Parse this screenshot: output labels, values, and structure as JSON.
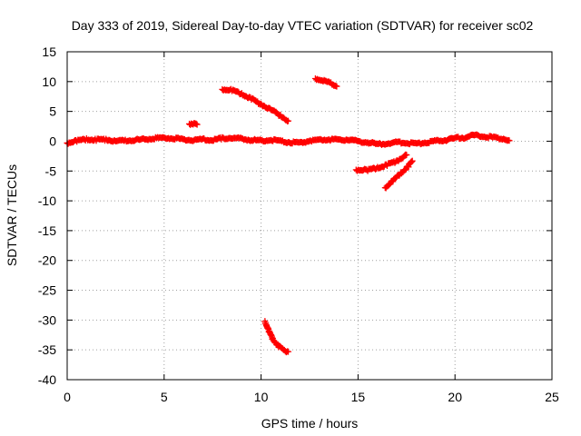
{
  "chart_data": {
    "type": "scatter",
    "title": "Day 333 of 2019, Sidereal Day-to-day VTEC variation (SDTVAR) for receiver sc02",
    "xlabel": "GPS time / hours",
    "ylabel": "SDTVAR / TECUs",
    "xlim": [
      0,
      25
    ],
    "ylim": [
      -40,
      15
    ],
    "x_ticks": [
      0,
      5,
      10,
      15,
      20,
      25
    ],
    "y_ticks": [
      -40,
      -35,
      -30,
      -25,
      -20,
      -15,
      -10,
      -5,
      0,
      5,
      10,
      15
    ],
    "x_tick_labels": [
      "0",
      "5",
      "10",
      "15",
      "20",
      "25"
    ],
    "y_tick_labels": [
      "-40",
      "-35",
      "-30",
      "-25",
      "-20",
      "-15",
      "-10",
      "-5",
      "0",
      "5",
      "10",
      "15"
    ],
    "grid": true,
    "legend": false,
    "marker": "plus",
    "color": "#ff0000",
    "segments": [
      {
        "x": [
          0,
          0.5,
          1,
          1.5,
          2,
          2.5,
          3,
          3.5,
          4,
          4.5,
          5,
          5.5,
          6,
          6.5,
          7,
          7.5,
          8,
          8.5,
          9,
          9.5,
          10,
          10.5,
          11,
          11.5,
          12,
          12.5,
          13,
          13.5,
          14,
          14.5,
          15,
          15.5,
          16,
          16.5,
          17,
          17.5,
          18,
          18.5,
          19,
          19.5,
          20,
          20.5,
          21,
          21.5,
          22,
          22.5,
          22.8
        ],
        "y": [
          -0.3,
          0.1,
          0.3,
          0.2,
          0.3,
          0.0,
          0.1,
          0.2,
          0.3,
          0.5,
          0.6,
          0.5,
          0.3,
          0.2,
          0.3,
          0.2,
          0.5,
          0.6,
          0.4,
          0.2,
          0.1,
          0.2,
          0.0,
          -0.2,
          -0.3,
          0.1,
          0.2,
          0.3,
          0.2,
          0.3,
          0.0,
          -0.2,
          -0.5,
          -0.4,
          -0.2,
          -0.3,
          -0.4,
          -0.2,
          0.0,
          0.2,
          0.5,
          0.6,
          1.0,
          0.8,
          0.6,
          0.4,
          0.1
        ]
      },
      {
        "x": [
          6.3,
          6.5,
          6.7
        ],
        "y": [
          2.9,
          3.0,
          2.8
        ]
      },
      {
        "x": [
          8.0,
          8.5,
          9.0,
          9.5,
          10.0,
          10.5,
          11.0,
          11.4
        ],
        "y": [
          8.7,
          8.6,
          7.9,
          7.1,
          6.2,
          5.3,
          4.3,
          3.4
        ]
      },
      {
        "x": [
          12.8,
          13.2,
          13.6,
          13.9
        ],
        "y": [
          10.5,
          10.2,
          9.7,
          9.2
        ]
      },
      {
        "x": [
          14.9,
          15.5,
          16.0,
          16.5,
          17.0,
          17.5
        ],
        "y": [
          -4.8,
          -4.8,
          -4.5,
          -4.0,
          -3.3,
          -2.3
        ]
      },
      {
        "x": [
          16.4,
          16.8,
          17.2,
          17.6,
          17.8
        ],
        "y": [
          -7.8,
          -6.6,
          -5.4,
          -4.2,
          -3.3
        ]
      },
      {
        "x": [
          10.2,
          10.4,
          10.6,
          10.9,
          11.2,
          11.4
        ],
        "y": [
          -30.2,
          -31.8,
          -33.2,
          -34.4,
          -35.1,
          -35.3
        ]
      }
    ]
  }
}
